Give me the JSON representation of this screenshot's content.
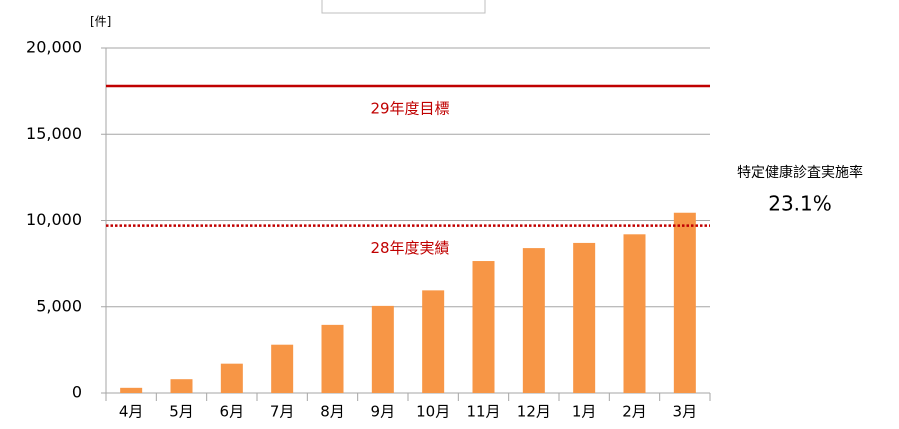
{
  "chart_data": {
    "type": "bar",
    "unit_label": "[件]",
    "categories": [
      "4月",
      "5月",
      "6月",
      "7月",
      "8月",
      "9月",
      "10月",
      "11月",
      "12月",
      "1月",
      "2月",
      "3月"
    ],
    "values": [
      300,
      800,
      1700,
      2800,
      3950,
      5050,
      5950,
      7650,
      8400,
      8700,
      9200,
      10450
    ],
    "color": "#f79646",
    "ylim": [
      0,
      20000
    ],
    "yticks": [
      0,
      {
        "value": 5000,
        "label": "5,000"
      },
      {
        "value": 10000,
        "label": "10,000"
      },
      {
        "value": 15000,
        "label": "15,000"
      },
      {
        "value": 20000,
        "label": "20,000"
      }
    ],
    "grid": true,
    "reference_lines": [
      {
        "label": "29年度目標",
        "value": 17800,
        "color": "#c00000",
        "style": "solid"
      },
      {
        "label": "28年度実績",
        "value": 9700,
        "color": "#c00000",
        "style": "dotted"
      }
    ],
    "side_note": {
      "title": "特定健康診査実施率",
      "value": "23.1%"
    }
  }
}
